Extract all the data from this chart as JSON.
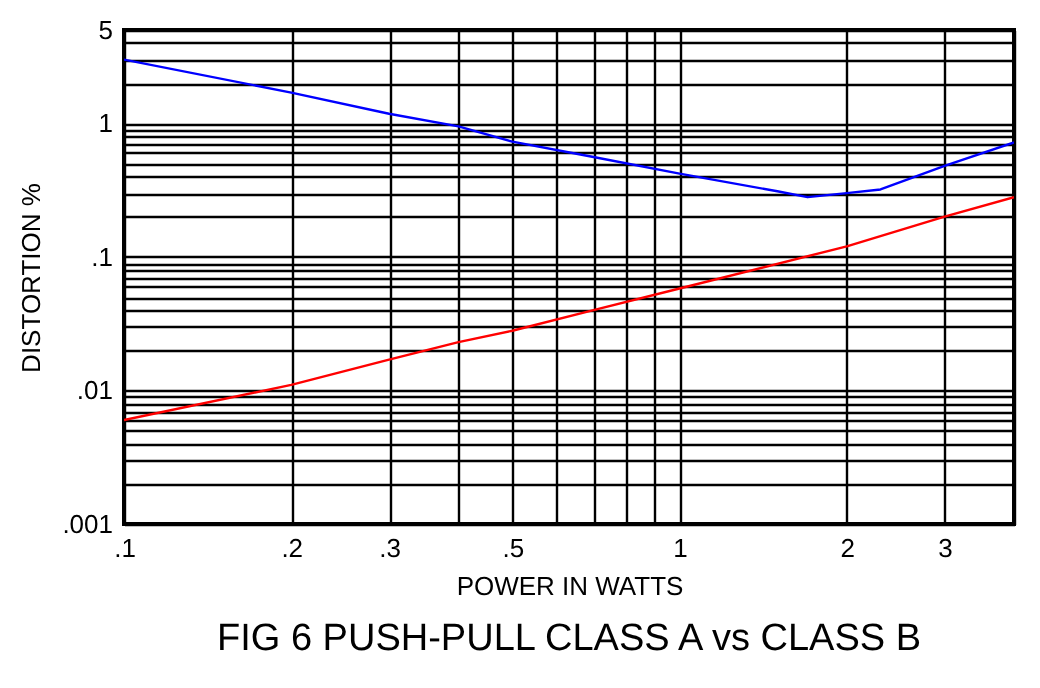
{
  "chart_data": {
    "type": "line",
    "title": "FIG 6   PUSH-PULL CLASS A  vs  CLASS B",
    "xlabel": "POWER IN WATTS",
    "ylabel": "DISTORTION %",
    "log": "xy",
    "grid": true,
    "xlim": [
      0.1,
      4
    ],
    "ylim": [
      0.001,
      5
    ],
    "xticks": [
      {
        "value": 0.1,
        "label": ".1"
      },
      {
        "value": 0.2,
        "label": ".2"
      },
      {
        "value": 0.3,
        "label": ".3"
      },
      {
        "value": 0.4,
        "label": null
      },
      {
        "value": 0.5,
        "label": ".5"
      },
      {
        "value": 0.6,
        "label": null
      },
      {
        "value": 0.7,
        "label": null
      },
      {
        "value": 0.8,
        "label": null
      },
      {
        "value": 0.9,
        "label": null
      },
      1,
      2,
      3,
      {
        "value": 4,
        "label": null
      }
    ],
    "yticks": [
      {
        "value": 0.001,
        "label": ".001"
      },
      {
        "value": 0.002,
        "label": null
      },
      {
        "value": 0.003,
        "label": null
      },
      {
        "value": 0.004,
        "label": null
      },
      {
        "value": 0.005,
        "label": null
      },
      {
        "value": 0.006,
        "label": null
      },
      {
        "value": 0.007,
        "label": null
      },
      {
        "value": 0.008,
        "label": null
      },
      {
        "value": 0.009,
        "label": null
      },
      {
        "value": 0.01,
        "label": ".01"
      },
      {
        "value": 0.02,
        "label": null
      },
      {
        "value": 0.03,
        "label": null
      },
      {
        "value": 0.04,
        "label": null
      },
      {
        "value": 0.05,
        "label": null
      },
      {
        "value": 0.06,
        "label": null
      },
      {
        "value": 0.07,
        "label": null
      },
      {
        "value": 0.08,
        "label": null
      },
      {
        "value": 0.09,
        "label": null
      },
      {
        "value": 0.1,
        "label": ".1"
      },
      {
        "value": 0.2,
        "label": null
      },
      {
        "value": 0.3,
        "label": null
      },
      {
        "value": 0.4,
        "label": null
      },
      {
        "value": 0.5,
        "label": null
      },
      {
        "value": 0.6,
        "label": null
      },
      {
        "value": 0.7,
        "label": null
      },
      {
        "value": 0.8,
        "label": null
      },
      {
        "value": 0.9,
        "label": null
      },
      1,
      {
        "value": 2,
        "label": null
      },
      {
        "value": 3,
        "label": null
      },
      {
        "value": 4,
        "label": null
      },
      5
    ],
    "x": [
      0.1,
      0.2,
      0.3,
      0.4,
      0.5,
      0.7,
      1,
      1.5,
      1.7,
      2,
      2.3,
      3,
      4
    ],
    "series": [
      {
        "color": "#0000ff",
        "values": [
          3.0,
          1.7,
          1.18,
          0.95,
          0.73,
          0.56,
          0.42,
          0.31,
          0.28,
          0.3,
          0.32,
          0.48,
          0.72
        ]
      },
      {
        "color": "#ff0000",
        "x": [
          0.1,
          0.2,
          0.3,
          0.4,
          0.5,
          0.7,
          1,
          2,
          3,
          4
        ],
        "values": [
          0.006,
          0.011,
          0.017,
          0.023,
          0.028,
          0.04,
          0.058,
          0.12,
          0.2,
          0.28
        ]
      }
    ]
  }
}
